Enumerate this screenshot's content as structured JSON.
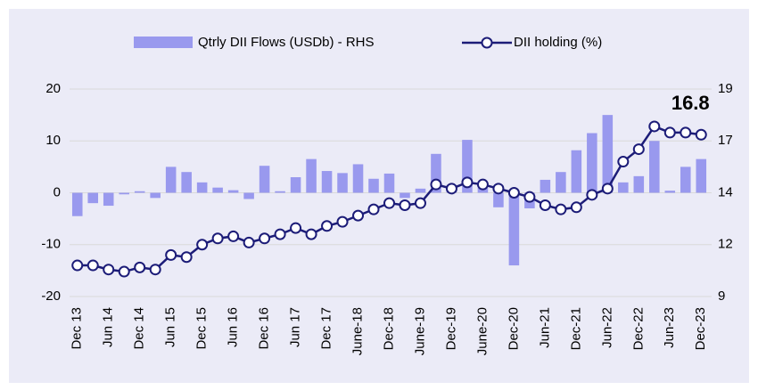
{
  "chart_data": {
    "type": "bar_line",
    "categories": [
      "Dec 13",
      null,
      "Jun 14",
      null,
      "Dec 14",
      null,
      "Jun 15",
      null,
      "Dec 15",
      null,
      "Jun 16",
      null,
      "Dec 16",
      null,
      "Jun 17",
      null,
      "Dec 17",
      null,
      "June-18",
      null,
      "Dec-18",
      null,
      "June-19",
      null,
      "Dec-19",
      null,
      "June-20",
      null,
      "Dec-20",
      null,
      "Jun-21",
      null,
      "Dec-21",
      null,
      "Jun-22",
      null,
      "Dec-22",
      null,
      "Jun-23",
      null,
      "Dec-23"
    ],
    "series": [
      {
        "name": "Qtrly DII Flows (USDb) - RHS",
        "color": "#9999ee",
        "kind": "bar",
        "values": [
          -4.5,
          -2,
          -2.5,
          -0.3,
          0.3,
          -1,
          5,
          4,
          2,
          1,
          0.5,
          -1.2,
          5.2,
          0.3,
          3,
          6.5,
          4.2,
          3.8,
          5.5,
          2.7,
          3.7,
          -1,
          0.8,
          7.5,
          1.5,
          10.2,
          1,
          -2.8,
          -14,
          -3,
          2.5,
          4,
          8.2,
          11.5,
          15,
          2,
          3.2,
          10,
          0.4,
          5,
          6.5
        ]
      },
      {
        "name": "DII holding (%)",
        "color": "#1c1c78",
        "kind": "line",
        "axis": "y2",
        "values": [
          10.5,
          10.5,
          10.3,
          10.2,
          10.4,
          10.3,
          11.0,
          10.9,
          11.5,
          11.8,
          11.9,
          11.6,
          11.8,
          12.0,
          12.3,
          12.0,
          12.4,
          12.6,
          12.9,
          13.2,
          13.5,
          13.4,
          13.5,
          14.4,
          14.2,
          14.5,
          14.4,
          14.2,
          14.0,
          13.8,
          13.4,
          13.2,
          13.3,
          13.9,
          14.2,
          15.5,
          16.1,
          17.2,
          16.9,
          16.9,
          16.8
        ]
      }
    ],
    "ylim": [
      -20,
      20
    ],
    "yticks": [
      -20,
      -10,
      0,
      10,
      20
    ],
    "y2lim": [
      9,
      19
    ],
    "y2ticks": [
      9,
      {
        "value": 11.5,
        "label": "12"
      },
      14,
      {
        "value": 16.5,
        "label": "17"
      },
      19
    ],
    "grid": true,
    "legend": "top",
    "annotations": [
      {
        "text": "16.8",
        "index": 40
      }
    ]
  }
}
